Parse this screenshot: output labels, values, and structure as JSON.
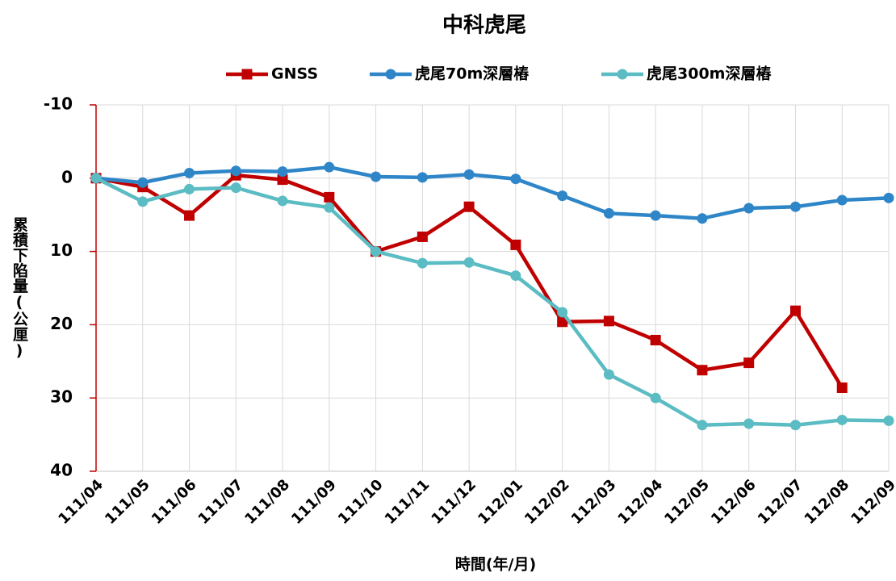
{
  "chart_data": {
    "type": "line",
    "title": "中科虎尾",
    "x_label": "時間(年/月)",
    "y_label": "累積下陷量(公厘)",
    "categories": [
      "111/04",
      "111/05",
      "111/06",
      "111/07",
      "111/08",
      "111/09",
      "111/10",
      "111/11",
      "111/12",
      "112/01",
      "112/02",
      "112/03",
      "112/04",
      "112/05",
      "112/06",
      "112/07",
      "112/08",
      "112/09"
    ],
    "series": [
      {
        "name": "GNSS",
        "color": "#c00000",
        "marker": "square",
        "values": [
          0,
          1.2,
          5.1,
          -0.4,
          0.2,
          2.6,
          10.0,
          8.0,
          3.9,
          9.1,
          19.6,
          19.5,
          22.1,
          26.2,
          25.2,
          18.1,
          28.6,
          null
        ]
      },
      {
        "name": "虎尾70m深層樁",
        "color": "#2e86c8",
        "marker": "circle",
        "values": [
          0,
          0.6,
          -0.7,
          -1.0,
          -0.9,
          -1.5,
          -0.2,
          -0.1,
          -0.5,
          0.1,
          2.4,
          4.8,
          5.1,
          5.5,
          4.1,
          3.9,
          3.0,
          2.7
        ]
      },
      {
        "name": "虎尾300m深層樁",
        "color": "#5bbcc4",
        "marker": "circle",
        "values": [
          0,
          3.2,
          1.5,
          1.3,
          3.1,
          4.0,
          10.0,
          11.6,
          11.5,
          13.3,
          18.3,
          26.8,
          30.0,
          33.7,
          33.5,
          33.7,
          33.0,
          33.1
        ]
      }
    ],
    "ylim": [
      -10,
      40
    ],
    "y_reversed": true,
    "yticks": [
      -10,
      0,
      10,
      20,
      30,
      40
    ],
    "grid": true,
    "legend": "top",
    "y_axis_color": "#c00000"
  }
}
